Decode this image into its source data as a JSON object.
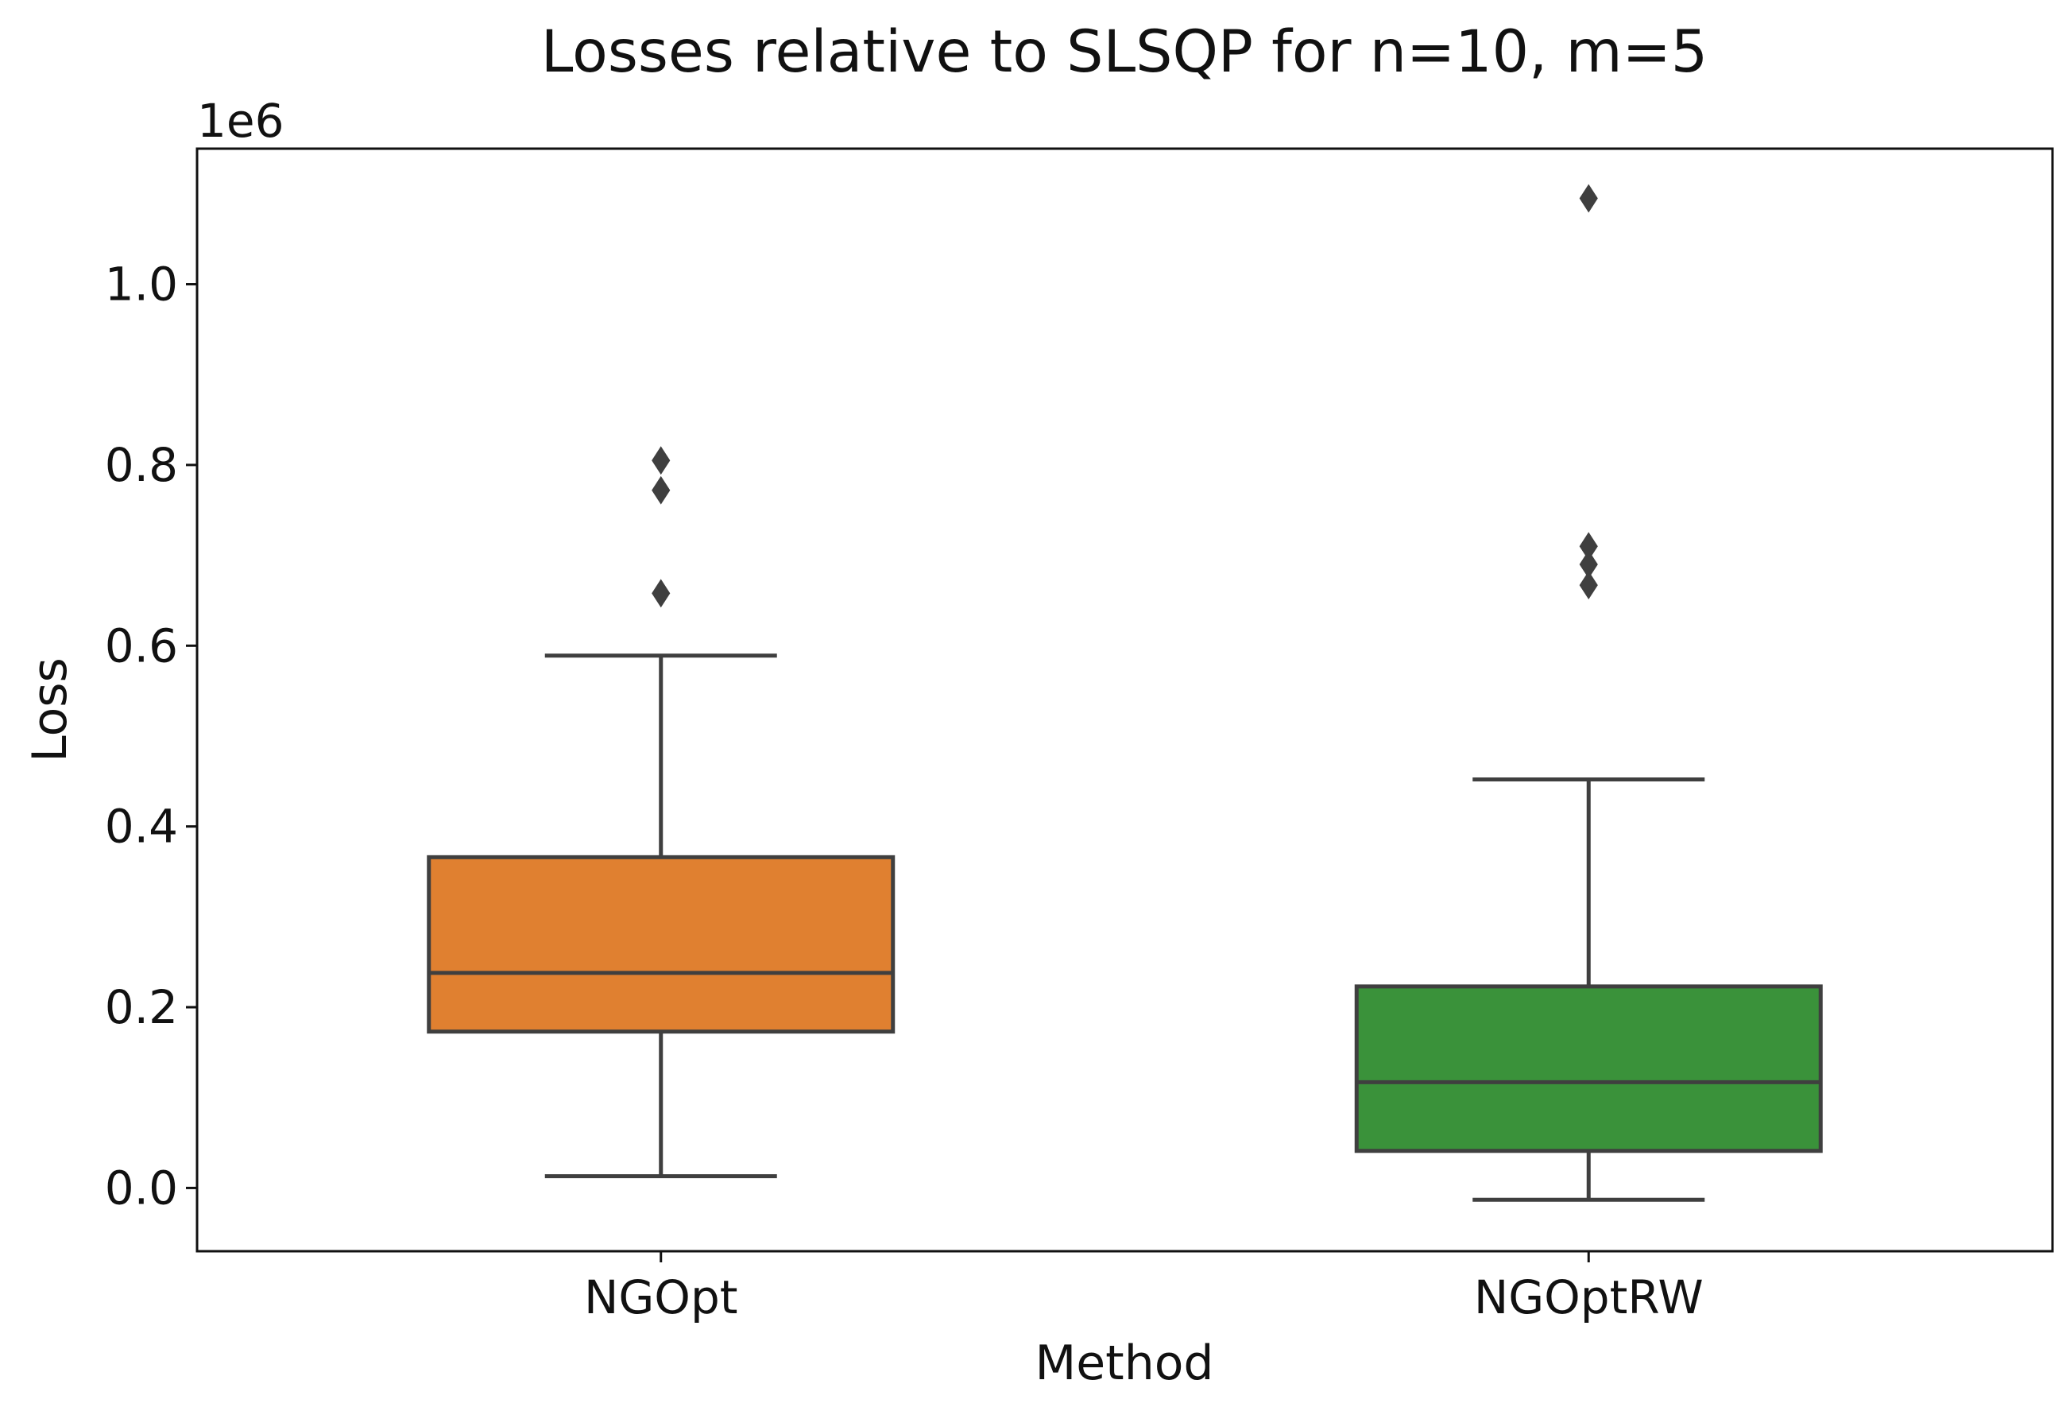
{
  "chart_data": {
    "type": "box",
    "title": "Losses relative to SLSQP for n=10, m=5",
    "xlabel": "Method",
    "ylabel": "Loss",
    "y_offset_label": "1e6",
    "ylim": [
      -0.07,
      1.15
    ],
    "yticks": [
      0.0,
      0.2,
      0.4,
      0.6,
      0.8,
      1.0
    ],
    "ytick_labels": [
      "0.0",
      "0.2",
      "0.4",
      "0.6",
      "0.8",
      "1.0"
    ],
    "grid": false,
    "categories": [
      "NGOpt",
      "NGOptRW"
    ],
    "series": [
      {
        "category": "NGOpt",
        "color": "#e08030",
        "whisker_low": 0.013,
        "q1": 0.173,
        "median": 0.238,
        "q3": 0.366,
        "whisker_high": 0.589,
        "outliers": [
          0.658,
          0.772,
          0.805
        ]
      },
      {
        "category": "NGOptRW",
        "color": "#3a923a",
        "whisker_low": -0.013,
        "q1": 0.041,
        "median": 0.117,
        "q3": 0.223,
        "whisker_high": 0.452,
        "outliers": [
          0.667,
          0.69,
          0.71,
          1.095
        ]
      }
    ]
  }
}
